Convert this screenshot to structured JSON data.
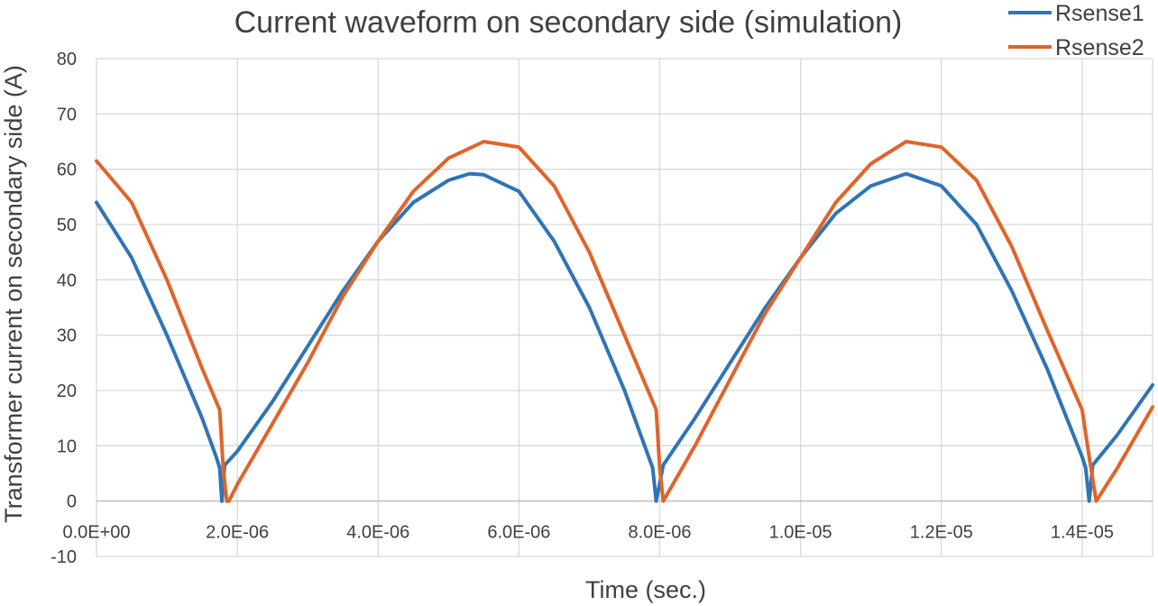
{
  "chart_data": {
    "type": "line",
    "title": "Current waveform on secondary side (simulation)",
    "xlabel": "Time (sec.)",
    "ylabel": "Transformer current on secondary side (A)",
    "xlim": [
      0,
      1.5e-05
    ],
    "ylim": [
      -10,
      80
    ],
    "x_tick_values": [
      0,
      2e-06,
      4e-06,
      6e-06,
      8e-06,
      1e-05,
      1.2e-05,
      1.4e-05
    ],
    "x_tick_labels": [
      "0.0E+00",
      "2.0E-06",
      "4.0E-06",
      "6.0E-06",
      "8.0E-06",
      "1.0E-05",
      "1.2E-05",
      "1.4E-05"
    ],
    "y_tick_values": [
      80,
      70,
      60,
      50,
      40,
      30,
      20,
      10,
      0,
      -10
    ],
    "y_tick_labels": [
      "80",
      "70",
      "60",
      "50",
      "40",
      "30",
      "20",
      "10",
      "0",
      "-10"
    ],
    "grid": true,
    "legend_position": "top-right",
    "series": [
      {
        "name": "Rsense1",
        "color": "#2E75B6",
        "points": [
          [
            0,
            54
          ],
          [
            5e-07,
            44
          ],
          [
            1e-06,
            30
          ],
          [
            1.5e-06,
            15
          ],
          [
            1.7e-06,
            8
          ],
          [
            1.75e-06,
            6
          ],
          [
            1.78e-06,
            0
          ],
          [
            1.82e-06,
            6.5
          ],
          [
            2e-06,
            9
          ],
          [
            2.5e-06,
            18
          ],
          [
            3e-06,
            28
          ],
          [
            3.5e-06,
            38
          ],
          [
            4e-06,
            47
          ],
          [
            4.5e-06,
            54
          ],
          [
            5e-06,
            58
          ],
          [
            5.3e-06,
            59.2
          ],
          [
            5.5e-06,
            59
          ],
          [
            6e-06,
            56
          ],
          [
            6.5e-06,
            47
          ],
          [
            7e-06,
            35
          ],
          [
            7.5e-06,
            20
          ],
          [
            7.9e-06,
            6
          ],
          [
            7.95e-06,
            0
          ],
          [
            8.05e-06,
            6.5
          ],
          [
            8.5e-06,
            15
          ],
          [
            9e-06,
            25
          ],
          [
            9.5e-06,
            35
          ],
          [
            1e-05,
            44
          ],
          [
            1.05e-05,
            52
          ],
          [
            1.1e-05,
            57
          ],
          [
            1.15e-05,
            59.2
          ],
          [
            1.2e-05,
            57
          ],
          [
            1.25e-05,
            50
          ],
          [
            1.3e-05,
            38
          ],
          [
            1.35e-05,
            24
          ],
          [
            1.4e-05,
            8
          ],
          [
            1.405e-05,
            6
          ],
          [
            1.41e-05,
            0
          ],
          [
            1.415e-05,
            6.5
          ],
          [
            1.45e-05,
            12
          ],
          [
            1.5e-05,
            21
          ]
        ]
      },
      {
        "name": "Rsense2",
        "color": "#E0642A",
        "points": [
          [
            0,
            61.5
          ],
          [
            5e-07,
            54
          ],
          [
            1e-06,
            40
          ],
          [
            1.5e-06,
            24
          ],
          [
            1.75e-06,
            16.5
          ],
          [
            1.8e-06,
            6
          ],
          [
            1.85e-06,
            0
          ],
          [
            1.88e-06,
            0
          ],
          [
            2e-06,
            3
          ],
          [
            2.5e-06,
            14
          ],
          [
            3e-06,
            25
          ],
          [
            3.5e-06,
            37
          ],
          [
            4e-06,
            47
          ],
          [
            4.5e-06,
            56
          ],
          [
            5e-06,
            62
          ],
          [
            5.5e-06,
            65
          ],
          [
            6e-06,
            64
          ],
          [
            6.5e-06,
            57
          ],
          [
            7e-06,
            45
          ],
          [
            7.5e-06,
            30
          ],
          [
            7.95e-06,
            16.5
          ],
          [
            8e-06,
            6
          ],
          [
            8.05e-06,
            0
          ],
          [
            8.5e-06,
            10
          ],
          [
            9e-06,
            22
          ],
          [
            9.5e-06,
            34
          ],
          [
            1e-05,
            44
          ],
          [
            1.05e-05,
            54
          ],
          [
            1.1e-05,
            61
          ],
          [
            1.15e-05,
            65
          ],
          [
            1.2e-05,
            64
          ],
          [
            1.25e-05,
            58
          ],
          [
            1.3e-05,
            46
          ],
          [
            1.35e-05,
            31
          ],
          [
            1.4e-05,
            16.5
          ],
          [
            1.41e-05,
            8
          ],
          [
            1.42e-05,
            0
          ],
          [
            1.45e-05,
            6
          ],
          [
            1.5e-05,
            17
          ]
        ]
      }
    ]
  }
}
